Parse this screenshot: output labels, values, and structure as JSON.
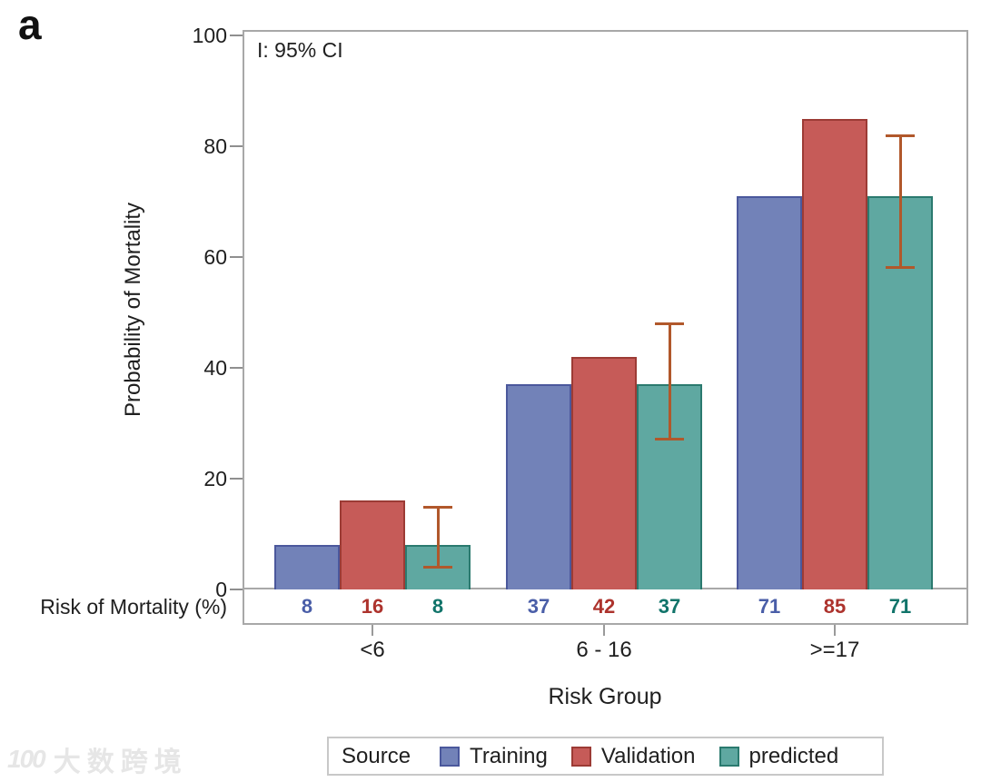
{
  "watermark": {
    "logo": "100",
    "text": "大数跨境"
  },
  "chart_data": {
    "type": "bar",
    "panel_label": "a",
    "annotation": "I: 95% CI",
    "title": "",
    "ylabel": "Probability of Mortality",
    "xlabel": "Risk Group",
    "ylim": [
      0,
      100
    ],
    "yticks": [
      0,
      20,
      40,
      60,
      80,
      100
    ],
    "grid": false,
    "categories": [
      "<6",
      "6 - 16",
      ">=17"
    ],
    "series": [
      {
        "name": "Training",
        "fill": "#7282b8",
        "stroke": "#4b589c",
        "label_color": "#4a5ea8",
        "values": [
          8,
          37,
          71
        ]
      },
      {
        "name": "Validation",
        "fill": "#c65b58",
        "stroke": "#9c3b35",
        "label_color": "#ad332d",
        "values": [
          16,
          42,
          85
        ]
      },
      {
        "name": "predicted",
        "fill": "#5fa8a1",
        "stroke": "#2b7a6f",
        "label_color": "#11746a",
        "values": [
          8,
          37,
          71
        ],
        "ci": [
          [
            4,
            15
          ],
          [
            27,
            48
          ],
          [
            58,
            82
          ]
        ]
      }
    ],
    "error_bar_color": "#b1582b",
    "error_bar_legend_note": "I: 95% CI",
    "value_row_label": "Risk of Mortality (%)",
    "value_labels": [
      [
        "8",
        "16",
        "8"
      ],
      [
        "37",
        "42",
        "37"
      ],
      [
        "71",
        "85",
        "71"
      ]
    ],
    "legend_title": "Source",
    "legend_position": "bottom"
  }
}
